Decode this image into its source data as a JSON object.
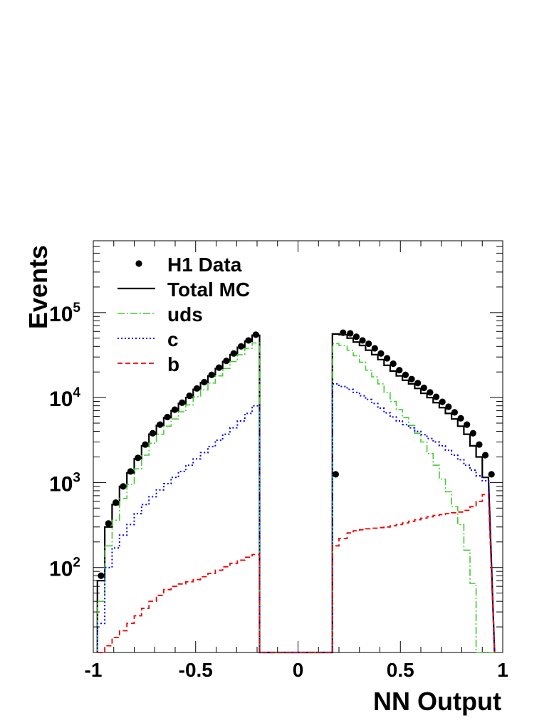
{
  "chart_data": {
    "type": "line",
    "xlabel": "NN Output",
    "ylabel": "Events",
    "xlim": [
      -1,
      1
    ],
    "ylim": [
      10,
      700000
    ],
    "yscale": "log",
    "x_ticks": [
      "-1",
      "-0.5",
      "0",
      "0.5",
      "1"
    ],
    "y_ticks": [
      {
        "base": "10",
        "exp": "2",
        "value": 100
      },
      {
        "base": "10",
        "exp": "3",
        "value": 1000
      },
      {
        "base": "10",
        "exp": "4",
        "value": 10000
      },
      {
        "base": "10",
        "exp": "5",
        "value": 100000
      }
    ],
    "legend_position": "top-left",
    "bin_edges": [
      -0.98,
      -0.944,
      -0.908,
      -0.872,
      -0.836,
      -0.8,
      -0.764,
      -0.728,
      -0.692,
      -0.656,
      -0.62,
      -0.584,
      -0.548,
      -0.512,
      -0.476,
      -0.44,
      -0.404,
      -0.368,
      -0.332,
      -0.296,
      -0.26,
      -0.224,
      -0.188,
      0.168,
      0.2,
      0.24,
      0.27,
      0.3,
      0.33,
      0.36,
      0.39,
      0.42,
      0.45,
      0.48,
      0.51,
      0.54,
      0.57,
      0.6,
      0.63,
      0.66,
      0.69,
      0.72,
      0.75,
      0.78,
      0.81,
      0.84,
      0.87,
      0.9,
      0.93,
      0.96
    ],
    "series": [
      {
        "name": "H1 Data",
        "kind": "points",
        "color": "#000000",
        "x": [
          -0.962,
          -0.926,
          -0.89,
          -0.854,
          -0.818,
          -0.782,
          -0.746,
          -0.71,
          -0.674,
          -0.638,
          -0.602,
          -0.566,
          -0.53,
          -0.494,
          -0.458,
          -0.422,
          -0.386,
          -0.35,
          -0.314,
          -0.278,
          -0.242,
          -0.206,
          0.184,
          0.22,
          0.255,
          0.285,
          0.315,
          0.345,
          0.375,
          0.405,
          0.435,
          0.465,
          0.495,
          0.525,
          0.555,
          0.585,
          0.615,
          0.645,
          0.675,
          0.705,
          0.735,
          0.765,
          0.795,
          0.825,
          0.855,
          0.885,
          0.915,
          0.945
        ],
        "y": [
          80,
          330,
          580,
          900,
          1350,
          1950,
          2800,
          3800,
          4800,
          5900,
          7200,
          8700,
          10500,
          12800,
          15200,
          18500,
          22500,
          27000,
          33000,
          40000,
          47000,
          55000,
          1250,
          58000,
          57000,
          52000,
          47000,
          43000,
          38000,
          33000,
          29000,
          25000,
          21000,
          18500,
          16500,
          14800,
          13000,
          11500,
          10200,
          8900,
          7800,
          6700,
          5700,
          4800,
          3800,
          2800,
          2100,
          1250
        ]
      },
      {
        "name": "Total MC",
        "kind": "step",
        "color": "#000000",
        "values": [
          70,
          300,
          550,
          900,
          1300,
          1900,
          2700,
          3700,
          4700,
          5800,
          7000,
          8500,
          10000,
          12500,
          15000,
          18000,
          22000,
          26500,
          32000,
          39000,
          46000,
          54000,
          1150,
          56000,
          55000,
          50000,
          45000,
          41000,
          36000,
          32000,
          28000,
          24000,
          20500,
          18000,
          16000,
          14500,
          12800,
          11200,
          10000,
          8700,
          7600,
          6500,
          5600,
          4600,
          3700,
          2700,
          2000,
          1150
        ]
      },
      {
        "name": "uds",
        "kind": "step",
        "color": "#44cc33",
        "values": [
          40,
          180,
          360,
          650,
          950,
          1450,
          2100,
          2900,
          3700,
          4600,
          5600,
          6800,
          8200,
          10200,
          12300,
          14800,
          18000,
          22000,
          26500,
          32000,
          38000,
          44000,
          800,
          43000,
          41000,
          36000,
          31000,
          26000,
          21000,
          17500,
          14500,
          11500,
          9000,
          7200,
          5800,
          4700,
          3800,
          3000,
          2200,
          1600,
          1100,
          780,
          520,
          320,
          160,
          65,
          null,
          null
        ]
      },
      {
        "name": "c",
        "kind": "step",
        "color": "#0000ee",
        "values": [
          22,
          100,
          170,
          240,
          320,
          430,
          550,
          680,
          820,
          970,
          1150,
          1350,
          1600,
          1900,
          2250,
          2650,
          3150,
          3700,
          4400,
          5300,
          6500,
          8000,
          280,
          14500,
          13500,
          12500,
          11500,
          10500,
          9500,
          8500,
          7500,
          6600,
          5900,
          5300,
          4800,
          4400,
          4000,
          3650,
          3300,
          3000,
          2700,
          2400,
          2100,
          1850,
          1600,
          1400,
          1200,
          1050
        ]
      },
      {
        "name": "b",
        "kind": "step",
        "color": "#ee0000",
        "values": [
          null,
          12,
          15,
          18,
          22,
          27,
          33,
          40,
          47,
          55,
          60,
          64,
          68,
          72,
          78,
          85,
          93,
          102,
          112,
          122,
          132,
          142,
          null,
          180,
          220,
          255,
          270,
          278,
          285,
          290,
          295,
          300,
          310,
          320,
          335,
          350,
          365,
          380,
          395,
          410,
          420,
          430,
          440,
          450,
          470,
          520,
          600,
          720
        ]
      }
    ]
  }
}
